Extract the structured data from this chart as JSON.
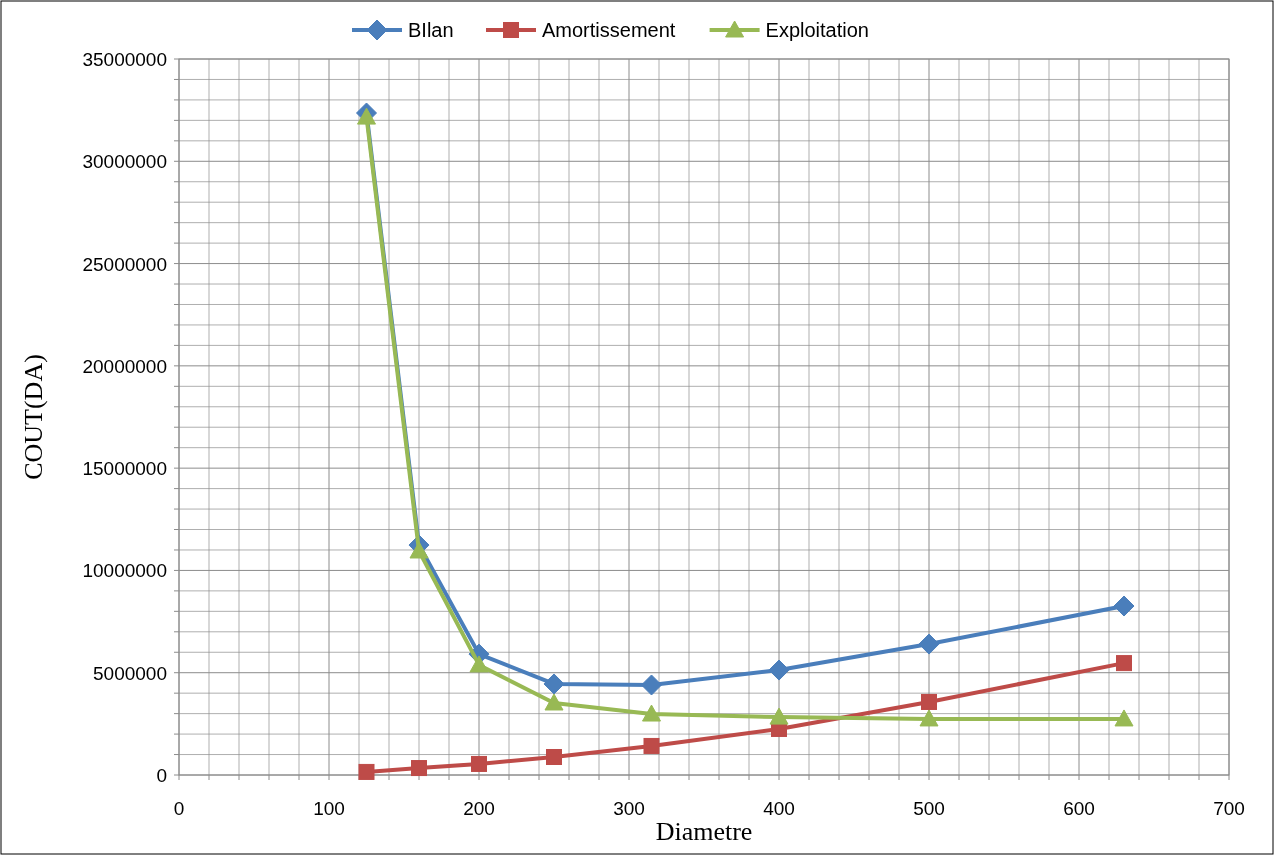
{
  "chart_data": {
    "type": "line",
    "xlabel": "Diametre",
    "ylabel": "COUT(DA)",
    "x": [
      125,
      160,
      200,
      250,
      315,
      400,
      500,
      630
    ],
    "series": [
      {
        "name": "BIlan",
        "color": "#4a7ebb",
        "marker": "diamond",
        "values": [
          32360000,
          11240000,
          5910000,
          4450000,
          4400000,
          5130000,
          6400000,
          8260000
        ]
      },
      {
        "name": "Amortissement",
        "color": "#be4b48",
        "marker": "square",
        "values": [
          150000,
          340000,
          540000,
          880000,
          1420000,
          2250000,
          3570000,
          5470000
        ]
      },
      {
        "name": "Exploitation",
        "color": "#98b954",
        "marker": "triangle",
        "values": [
          32160000,
          10950000,
          5380000,
          3520000,
          2980000,
          2830000,
          2740000,
          2740000
        ]
      }
    ],
    "xlim": [
      0,
      700
    ],
    "xticks": [
      0,
      {
        "value": 20,
        "label": null
      },
      {
        "value": 40,
        "label": null
      },
      {
        "value": 60,
        "label": null
      },
      {
        "value": 80,
        "label": null
      },
      100,
      {
        "value": 120,
        "label": null
      },
      {
        "value": 140,
        "label": null
      },
      {
        "value": 160,
        "label": null
      },
      {
        "value": 180,
        "label": null
      },
      200,
      {
        "value": 220,
        "label": null
      },
      {
        "value": 240,
        "label": null
      },
      {
        "value": 260,
        "label": null
      },
      {
        "value": 280,
        "label": null
      },
      300,
      {
        "value": 320,
        "label": null
      },
      {
        "value": 340,
        "label": null
      },
      {
        "value": 360,
        "label": null
      },
      {
        "value": 380,
        "label": null
      },
      400,
      {
        "value": 420,
        "label": null
      },
      {
        "value": 440,
        "label": null
      },
      {
        "value": 460,
        "label": null
      },
      {
        "value": 480,
        "label": null
      },
      500,
      {
        "value": 520,
        "label": null
      },
      {
        "value": 540,
        "label": null
      },
      {
        "value": 560,
        "label": null
      },
      {
        "value": 580,
        "label": null
      },
      600,
      {
        "value": 620,
        "label": null
      },
      {
        "value": 640,
        "label": null
      },
      {
        "value": 660,
        "label": null
      },
      {
        "value": 680,
        "label": null
      },
      700
    ],
    "ylim": [
      0,
      35000000
    ],
    "yticks": [
      0,
      {
        "value": 1000000,
        "label": null
      },
      {
        "value": 2000000,
        "label": null
      },
      {
        "value": 3000000,
        "label": null
      },
      {
        "value": 4000000,
        "label": null
      },
      5000000,
      {
        "value": 6000000,
        "label": null
      },
      {
        "value": 7000000,
        "label": null
      },
      {
        "value": 8000000,
        "label": null
      },
      {
        "value": 9000000,
        "label": null
      },
      10000000,
      {
        "value": 11000000,
        "label": null
      },
      {
        "value": 12000000,
        "label": null
      },
      {
        "value": 13000000,
        "label": null
      },
      {
        "value": 14000000,
        "label": null
      },
      15000000,
      {
        "value": 16000000,
        "label": null
      },
      {
        "value": 17000000,
        "label": null
      },
      {
        "value": 18000000,
        "label": null
      },
      {
        "value": 19000000,
        "label": null
      },
      20000000,
      {
        "value": 21000000,
        "label": null
      },
      {
        "value": 22000000,
        "label": null
      },
      {
        "value": 23000000,
        "label": null
      },
      {
        "value": 24000000,
        "label": null
      },
      25000000,
      {
        "value": 26000000,
        "label": null
      },
      {
        "value": 27000000,
        "label": null
      },
      {
        "value": 28000000,
        "label": null
      },
      {
        "value": 29000000,
        "label": null
      },
      30000000,
      {
        "value": 31000000,
        "label": null
      },
      {
        "value": 32000000,
        "label": null
      },
      {
        "value": 33000000,
        "label": null
      },
      {
        "value": 34000000,
        "label": null
      },
      35000000
    ],
    "grid": true,
    "legend": "top"
  }
}
